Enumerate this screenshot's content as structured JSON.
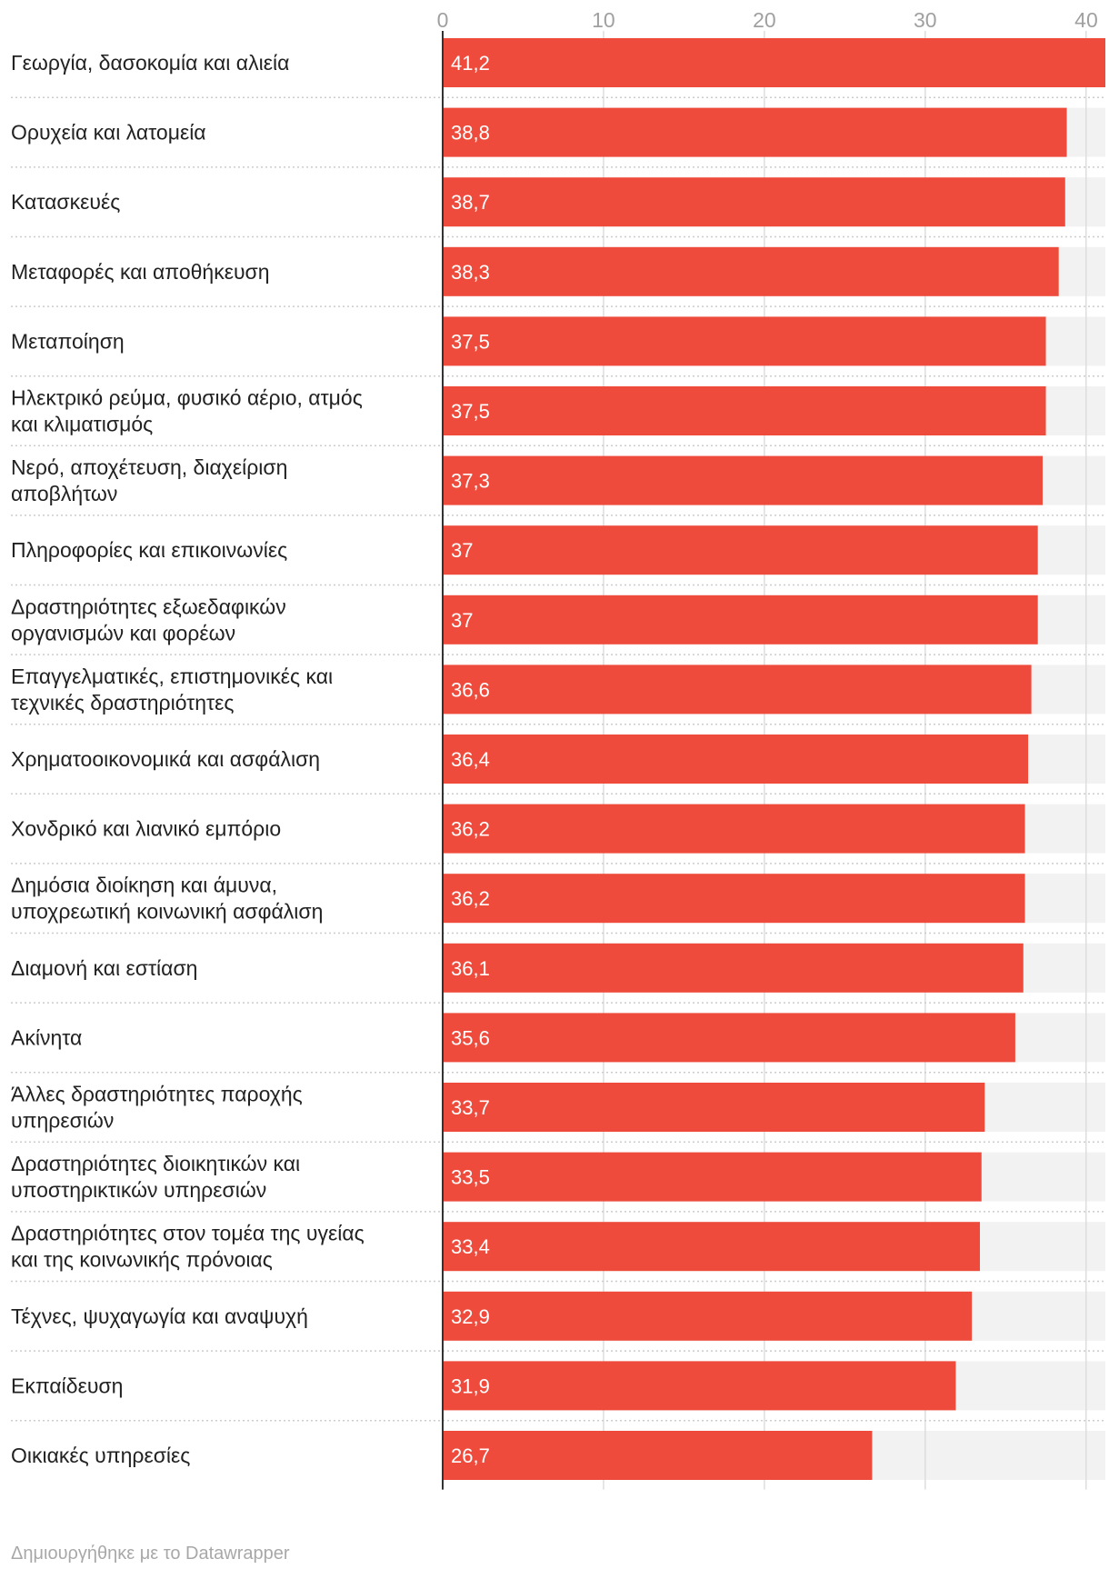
{
  "colors": {
    "bar": "#ef4b3c",
    "track": "#f2f2f2",
    "grid": "#dddddd",
    "axis": "#333333"
  },
  "chart_data": {
    "type": "bar",
    "orientation": "horizontal",
    "xlim": [
      0,
      41.2
    ],
    "ticks": [
      0,
      10,
      20,
      30,
      40
    ],
    "grid": true,
    "categories": [
      "Γεωργία, δασοκομία και αλιεία",
      "Ορυχεία και λατομεία",
      "Κατασκευές",
      "Μεταφορές και αποθήκευση",
      "Μεταποίηση",
      "Ηλεκτρικό ρεύμα, φυσικό αέριο, ατμός και κλιματισμός",
      "Νερό, αποχέτευση, διαχείριση αποβλήτων",
      "Πληροφορίες και επικοινωνίες",
      "Δραστηριότητες εξωεδαφικών οργανισμών και φορέων",
      "Επαγγελματικές, επιστημονικές και τεχνικές δραστηριότητες",
      "Χρηματοοικονομικά και ασφάλιση",
      "Χονδρικό και λιανικό εμπόριο",
      "Δημόσια διοίκηση και άμυνα, υποχρεωτική κοινωνική ασφάλιση",
      "Διαμονή και εστίαση",
      "Ακίνητα",
      "Άλλες δραστηριότητες παροχής υπηρεσιών",
      "Δραστηριότητες διοικητικών και υποστηρικτικών υπηρεσιών",
      "Δραστηριότητες στον τομέα της υγείας και της κοινωνικής πρόνοιας",
      "Τέχνες, ψυχαγωγία και αναψυχή",
      "Εκπαίδευση",
      "Οικιακές υπηρεσίες"
    ],
    "label_lines": [
      [
        "Γεωργία, δασοκομία και αλιεία"
      ],
      [
        "Ορυχεία και λατομεία"
      ],
      [
        "Κατασκευές"
      ],
      [
        "Μεταφορές και αποθήκευση"
      ],
      [
        "Μεταποίηση"
      ],
      [
        "Ηλεκτρικό ρεύμα, φυσικό αέριο, ατμός",
        "και κλιματισμός"
      ],
      [
        "Νερό, αποχέτευση, διαχείριση",
        "αποβλήτων"
      ],
      [
        "Πληροφορίες και επικοινωνίες"
      ],
      [
        "Δραστηριότητες εξωεδαφικών",
        "οργανισμών και φορέων"
      ],
      [
        "Επαγγελματικές, επιστημονικές και",
        "τεχνικές δραστηριότητες"
      ],
      [
        "Χρηματοοικονομικά και ασφάλιση"
      ],
      [
        "Χονδρικό και λιανικό εμπόριο"
      ],
      [
        "Δημόσια διοίκηση και άμυνα,",
        "υποχρεωτική κοινωνική ασφάλιση"
      ],
      [
        "Διαμονή και εστίαση"
      ],
      [
        "Ακίνητα"
      ],
      [
        "Άλλες δραστηριότητες παροχής",
        "υπηρεσιών"
      ],
      [
        "Δραστηριότητες διοικητικών και",
        "υποστηρικτικών υπηρεσιών"
      ],
      [
        "Δραστηριότητες στον τομέα της υγείας",
        "και της κοινωνικής πρόνοιας"
      ],
      [
        "Τέχνες, ψυχαγωγία και αναψυχή"
      ],
      [
        "Εκπαίδευση"
      ],
      [
        "Οικιακές υπηρεσίες"
      ]
    ],
    "values": [
      41.2,
      38.8,
      38.7,
      38.3,
      37.5,
      37.5,
      37.3,
      37,
      37,
      36.6,
      36.4,
      36.2,
      36.2,
      36.1,
      35.6,
      33.7,
      33.5,
      33.4,
      32.9,
      31.9,
      26.7
    ],
    "value_labels": [
      "41,2",
      "38,8",
      "38,7",
      "38,3",
      "37,5",
      "37,5",
      "37,3",
      "37",
      "37",
      "36,6",
      "36,4",
      "36,2",
      "36,2",
      "36,1",
      "35,6",
      "33,7",
      "33,5",
      "33,4",
      "32,9",
      "31,9",
      "26,7"
    ]
  },
  "footer": {
    "credit": "Δημιουργήθηκε με το Datawrapper"
  }
}
